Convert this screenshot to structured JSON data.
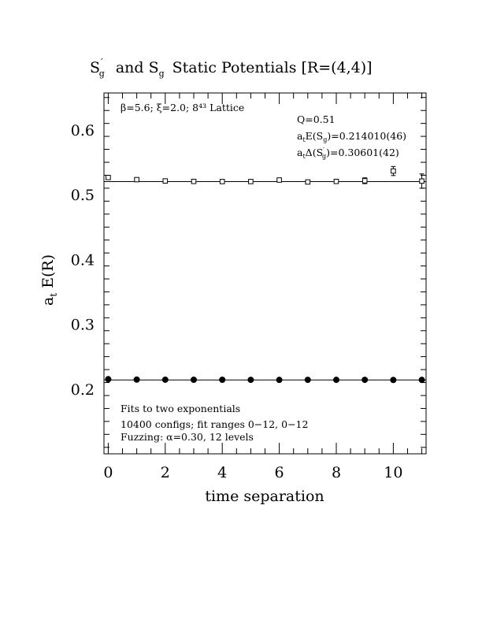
{
  "chart_data": {
    "type": "scatter",
    "title": {
      "part1": "S",
      "part1_sup": "′",
      "part1_sub": "g",
      "part2": "and S",
      "part2_sub": "g",
      "part3": "Static Potentials [R=(4,4)]"
    },
    "xlabel": "time separation",
    "ylabel": {
      "main": "a",
      "sub": "t",
      "rest": " E(R)"
    },
    "xlim": [
      -0.15,
      11.15
    ],
    "ylim": [
      0.1,
      0.657
    ],
    "x_ticks": [
      "0",
      "2",
      "4",
      "6",
      "8",
      "10"
    ],
    "y_ticks": [
      "0.2",
      "0.3",
      "0.4",
      "0.5",
      "0.6"
    ],
    "annotations": {
      "top_left": "β=5.6; ξ=2.0; 8⁴³ Lattice",
      "q_value": "Q=0.51",
      "energy_a": "a",
      "energy_sub_t": "t",
      "energy_b": "E(S",
      "energy_sub_g": "g",
      "energy_c": ")=0.214010(46)",
      "delta_a": "a",
      "delta_sub_t": "t",
      "delta_b": "Δ(S",
      "delta_sup": "′",
      "delta_sub_g": "g",
      "delta_c": ")=0.30601(42)",
      "fits": "Fits to two exponentials",
      "configs": "10400 configs; fit ranges 0−12, 0−12",
      "fuzzing": "Fuzzing: α=0.30, 12 levels"
    },
    "series": [
      {
        "marker": "open-square",
        "x": [
          0,
          1,
          2,
          3,
          4,
          5,
          6,
          7,
          8,
          9,
          10,
          11
        ],
        "y": [
          0.5265,
          0.5232,
          0.5212,
          0.5205,
          0.5203,
          0.5203,
          0.5226,
          0.5196,
          0.5205,
          0.5215,
          0.5365,
          0.521
        ],
        "err": [
          0.0012,
          0.0012,
          0.0012,
          0.0014,
          0.0015,
          0.0018,
          0.002,
          0.0025,
          0.003,
          0.0045,
          0.007,
          0.011
        ],
        "fit_line": 0.5202
      },
      {
        "marker": "filled-circle",
        "x": [
          0,
          1,
          2,
          3,
          4,
          5,
          6,
          7,
          8,
          9,
          10,
          11
        ],
        "y": [
          0.2152,
          0.2146,
          0.2144,
          0.2143,
          0.2143,
          0.2142,
          0.2141,
          0.2142,
          0.2142,
          0.2142,
          0.214,
          0.2141
        ],
        "err": [
          0.0003,
          0.0003,
          0.0003,
          0.0003,
          0.0003,
          0.0003,
          0.0003,
          0.0004,
          0.0004,
          0.0004,
          0.0005,
          0.0006
        ],
        "fit_line": 0.21401
      }
    ]
  }
}
